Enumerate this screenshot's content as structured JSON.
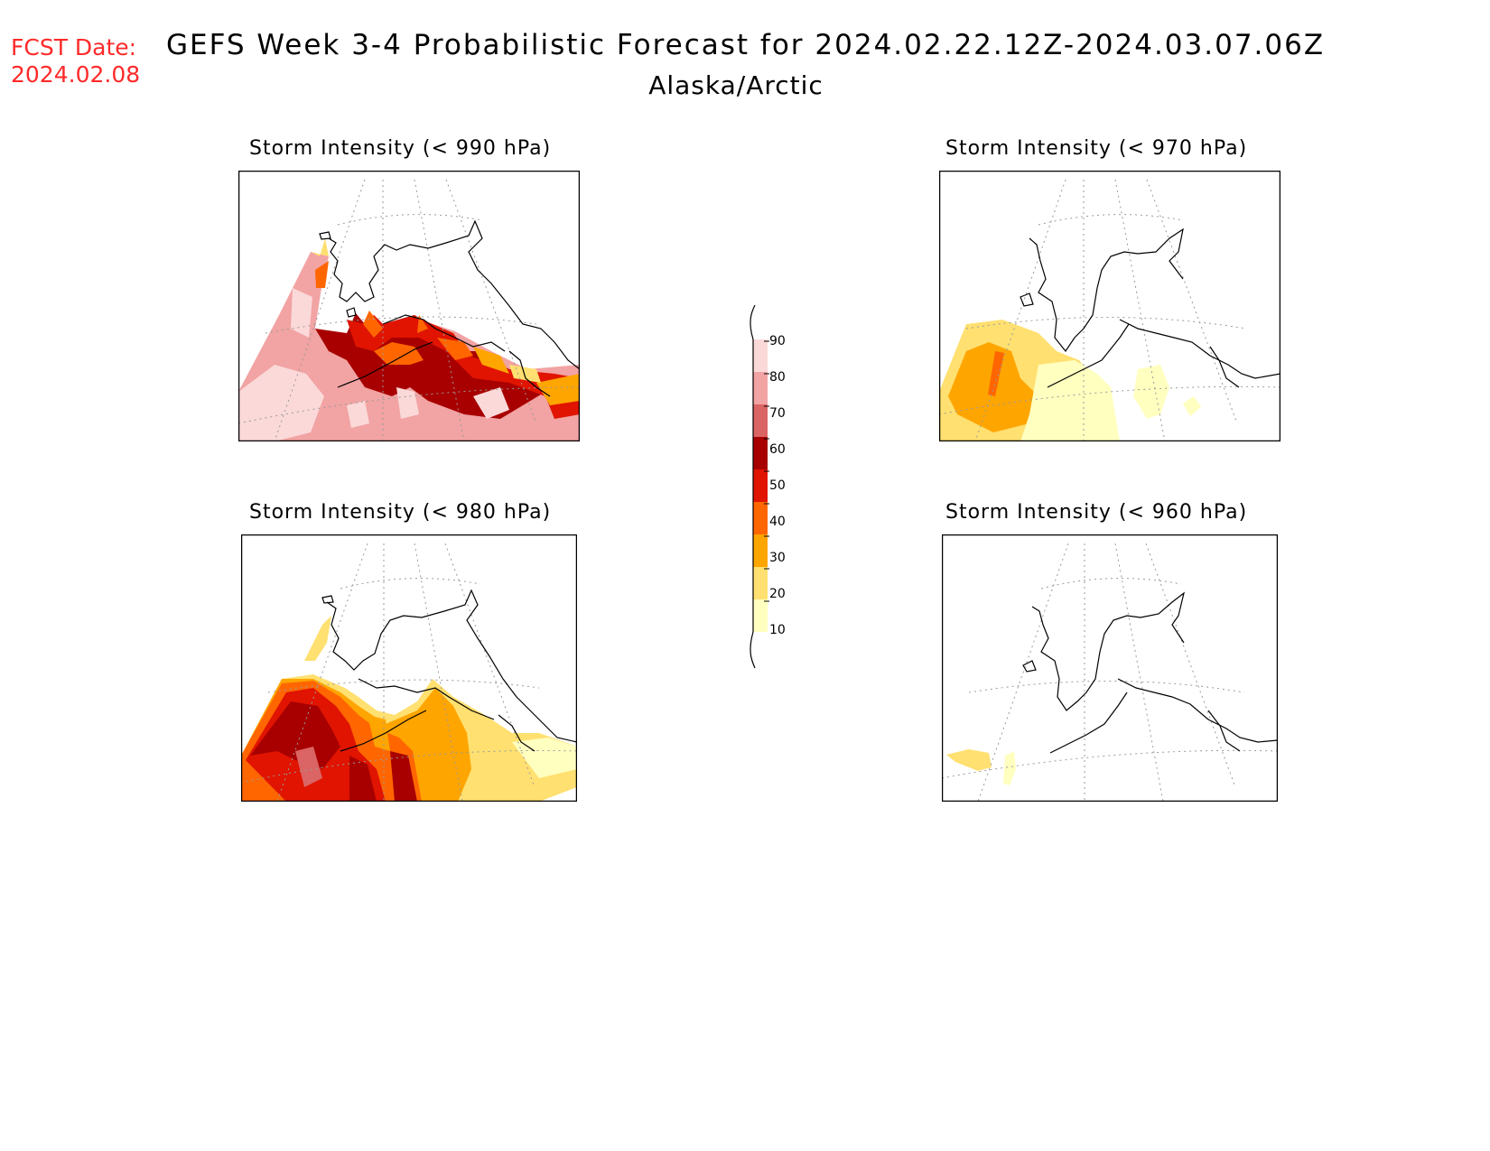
{
  "header": {
    "fcst_label": "FCST Date:",
    "fcst_date": "2024.02.08",
    "title": "GEFS Week 3-4 Probabilistic Forecast for 2024.02.22.12Z-2024.03.07.06Z",
    "subtitle": "Alaska/Arctic"
  },
  "panels": [
    {
      "title": "Storm Intensity (< 990 hPa)"
    },
    {
      "title": "Storm Intensity (< 970 hPa)"
    },
    {
      "title": "Storm Intensity (< 980 hPa)"
    },
    {
      "title": "Storm Intensity (< 960 hPa)"
    }
  ],
  "colorbar": {
    "labels": [
      "90",
      "80",
      "70",
      "60",
      "50",
      "40",
      "30",
      "20",
      "10"
    ],
    "colors": [
      "#fbd9d9",
      "#f2a3a3",
      "#db6464",
      "#a80000",
      "#e01400",
      "#ff6600",
      "#ffa500",
      "#ffe070",
      "#ffffc0"
    ]
  }
}
